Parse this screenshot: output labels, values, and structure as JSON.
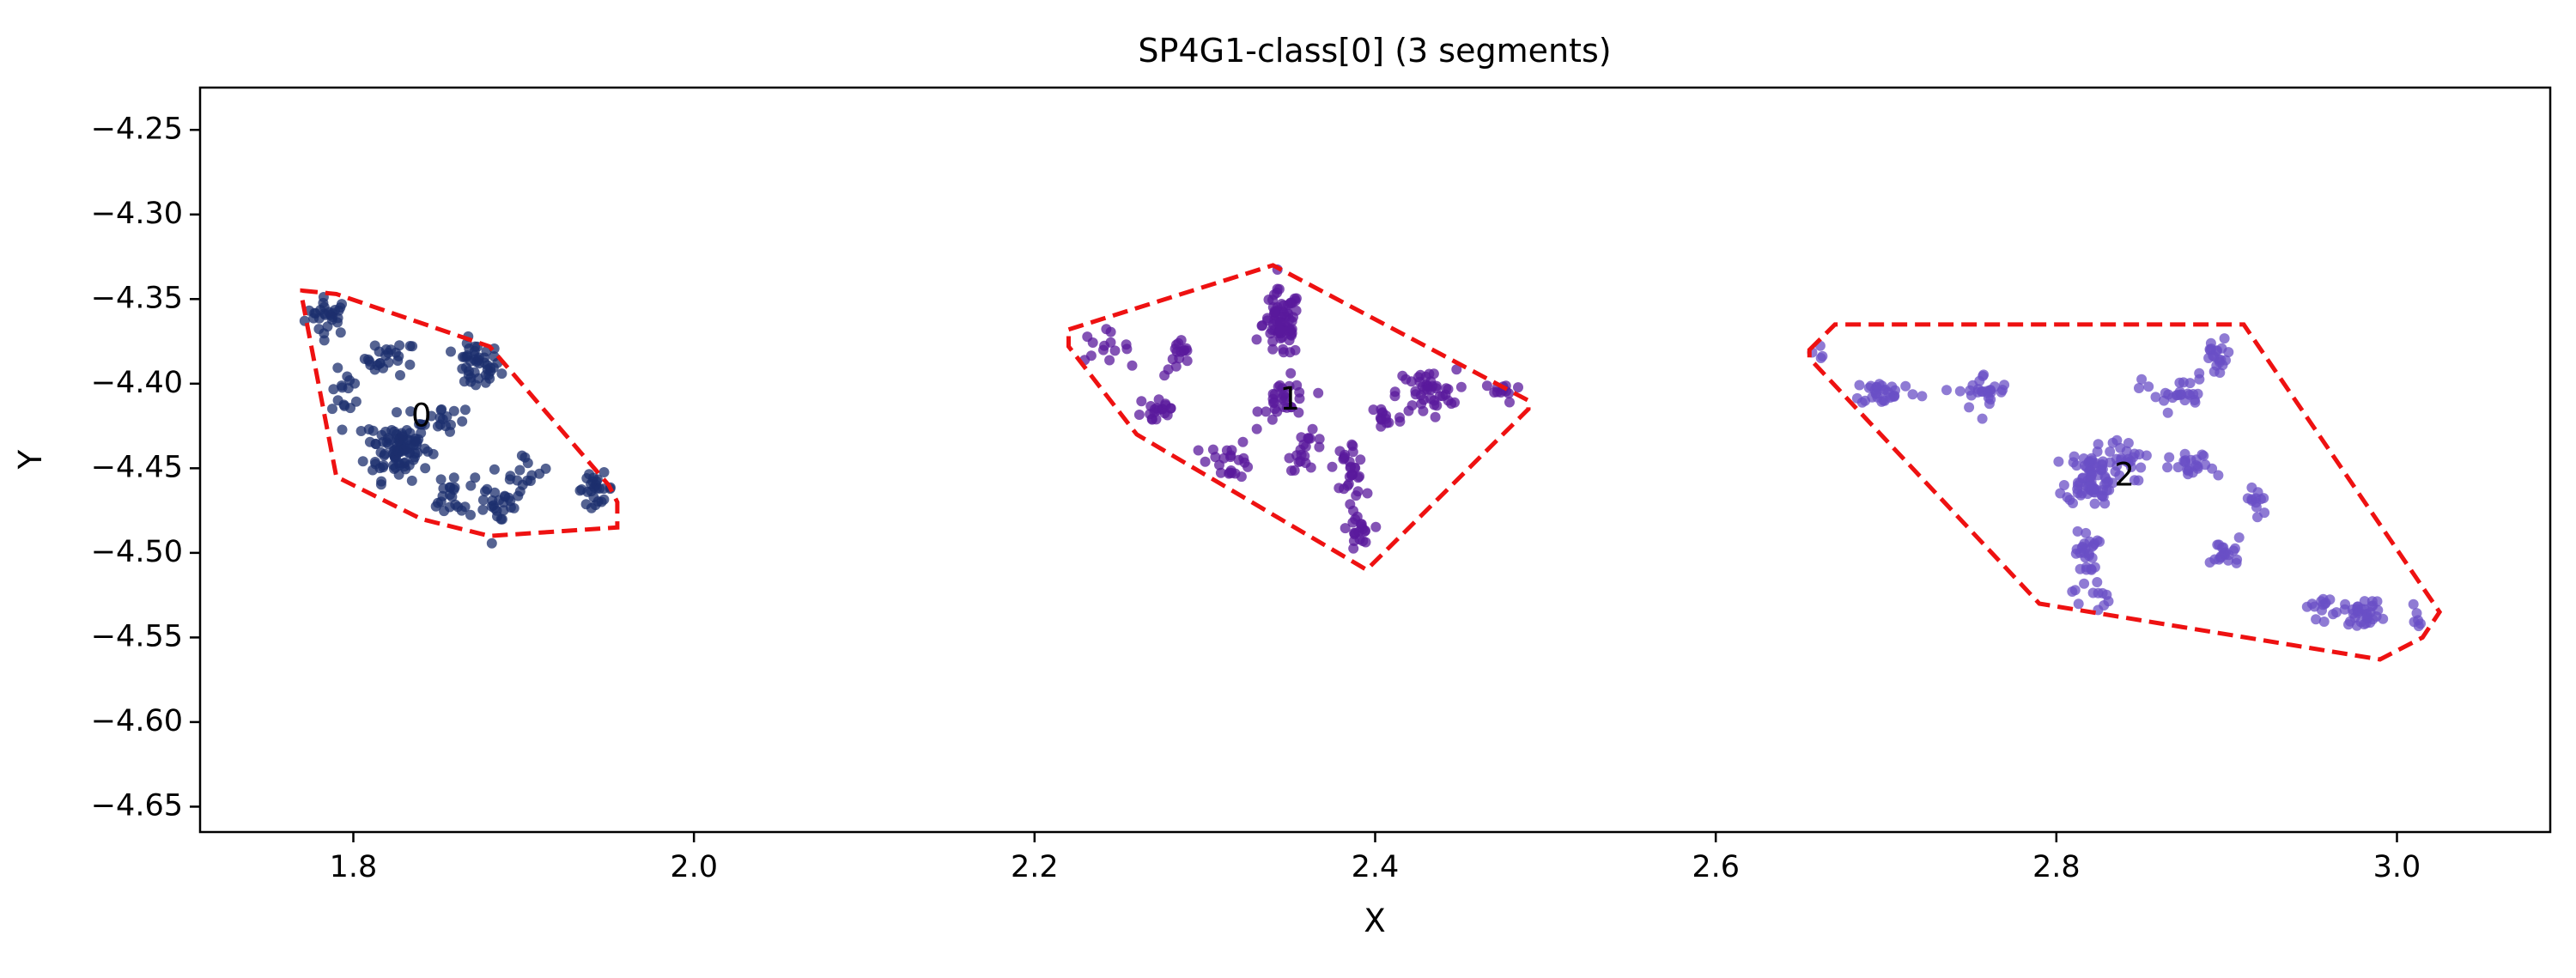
{
  "chart_data": {
    "type": "scatter",
    "title": "SP4G1-class[0] (3 segments)",
    "xlabel": "X",
    "ylabel": "Y",
    "xlim": [
      1.71,
      3.09
    ],
    "ylim": [
      -4.665,
      -4.225
    ],
    "grid": false,
    "x_ticks": [
      1.8,
      2.0,
      2.2,
      2.4,
      2.6,
      2.8,
      3.0
    ],
    "x_tick_labels": [
      "1.8",
      "2.0",
      "2.2",
      "2.4",
      "2.6",
      "2.8",
      "3.0"
    ],
    "y_ticks": [
      -4.25,
      -4.3,
      -4.35,
      -4.4,
      -4.45,
      -4.5,
      -4.55,
      -4.6,
      -4.65
    ],
    "y_tick_labels": [
      "−4.25",
      "−4.30",
      "−4.35",
      "−4.40",
      "−4.45",
      "−4.50",
      "−4.55",
      "−4.60",
      "−4.65"
    ],
    "hull_color": "#ee1111",
    "series": [
      {
        "label": "0",
        "color": "#1c2f6e",
        "label_pos": [
          1.84,
          -4.42
        ],
        "hull": [
          [
            1.77,
            -4.345
          ],
          [
            1.79,
            -4.347
          ],
          [
            1.88,
            -4.378
          ],
          [
            1.95,
            -4.46
          ],
          [
            1.955,
            -4.47
          ],
          [
            1.955,
            -4.485
          ],
          [
            1.88,
            -4.49
          ],
          [
            1.84,
            -4.48
          ],
          [
            1.79,
            -4.455
          ],
          [
            1.77,
            -4.35
          ]
        ],
        "blobs": [
          [
            1.785,
            -4.36,
            0.012,
            0.01,
            28
          ],
          [
            1.822,
            -4.385,
            0.014,
            0.009,
            24
          ],
          [
            1.872,
            -4.39,
            0.013,
            0.013,
            44
          ],
          [
            1.796,
            -4.405,
            0.008,
            0.012,
            14
          ],
          [
            1.826,
            -4.438,
            0.017,
            0.017,
            95
          ],
          [
            1.852,
            -4.42,
            0.012,
            0.01,
            16
          ],
          [
            1.858,
            -4.467,
            0.012,
            0.012,
            22
          ],
          [
            1.902,
            -4.452,
            0.012,
            0.01,
            14
          ],
          [
            1.887,
            -4.472,
            0.01,
            0.012,
            24
          ],
          [
            1.942,
            -4.462,
            0.01,
            0.008,
            26
          ]
        ]
      },
      {
        "label": "1",
        "color": "#5a1a9c",
        "label_pos": [
          2.35,
          -4.41
        ],
        "hull": [
          [
            2.22,
            -4.368
          ],
          [
            2.34,
            -4.33
          ],
          [
            2.49,
            -4.41
          ],
          [
            2.49,
            -4.415
          ],
          [
            2.395,
            -4.51
          ],
          [
            2.26,
            -4.43
          ],
          [
            2.22,
            -4.378
          ]
        ],
        "blobs": [
          [
            2.24,
            -4.378,
            0.014,
            0.008,
            14
          ],
          [
            2.285,
            -4.385,
            0.008,
            0.01,
            16
          ],
          [
            2.272,
            -4.415,
            0.012,
            0.01,
            20
          ],
          [
            2.345,
            -4.365,
            0.01,
            0.018,
            75
          ],
          [
            2.348,
            -4.41,
            0.014,
            0.012,
            30
          ],
          [
            2.315,
            -4.445,
            0.012,
            0.01,
            22
          ],
          [
            2.36,
            -4.44,
            0.01,
            0.01,
            20
          ],
          [
            2.385,
            -4.45,
            0.008,
            0.016,
            30
          ],
          [
            2.39,
            -4.49,
            0.006,
            0.012,
            20
          ],
          [
            2.43,
            -4.405,
            0.016,
            0.012,
            45
          ],
          [
            2.475,
            -4.405,
            0.01,
            0.006,
            12
          ],
          [
            2.405,
            -4.42,
            0.01,
            0.01,
            14
          ]
        ]
      },
      {
        "label": "2",
        "color": "#6a4fc6",
        "label_pos": [
          2.84,
          -4.455
        ],
        "hull": [
          [
            2.655,
            -4.38
          ],
          [
            2.67,
            -4.365
          ],
          [
            2.91,
            -4.365
          ],
          [
            3.025,
            -4.535
          ],
          [
            3.015,
            -4.55
          ],
          [
            2.99,
            -4.563
          ],
          [
            2.79,
            -4.53
          ],
          [
            2.655,
            -4.385
          ]
        ],
        "blobs": [
          [
            2.66,
            -4.382,
            0.006,
            0.006,
            4
          ],
          [
            2.7,
            -4.405,
            0.018,
            0.007,
            30
          ],
          [
            2.758,
            -4.405,
            0.014,
            0.01,
            26
          ],
          [
            2.82,
            -4.455,
            0.013,
            0.015,
            80
          ],
          [
            2.84,
            -4.445,
            0.01,
            0.012,
            20
          ],
          [
            2.818,
            -4.5,
            0.006,
            0.012,
            26
          ],
          [
            2.82,
            -4.525,
            0.01,
            0.01,
            12
          ],
          [
            2.87,
            -4.405,
            0.018,
            0.01,
            26
          ],
          [
            2.895,
            -4.385,
            0.008,
            0.01,
            20
          ],
          [
            2.88,
            -4.45,
            0.012,
            0.008,
            22
          ],
          [
            2.918,
            -4.47,
            0.007,
            0.01,
            12
          ],
          [
            2.9,
            -4.5,
            0.008,
            0.008,
            20
          ],
          [
            2.955,
            -4.532,
            0.008,
            0.006,
            14
          ],
          [
            2.98,
            -4.535,
            0.01,
            0.007,
            34
          ],
          [
            3.012,
            -4.54,
            0.006,
            0.008,
            6
          ]
        ]
      }
    ]
  }
}
